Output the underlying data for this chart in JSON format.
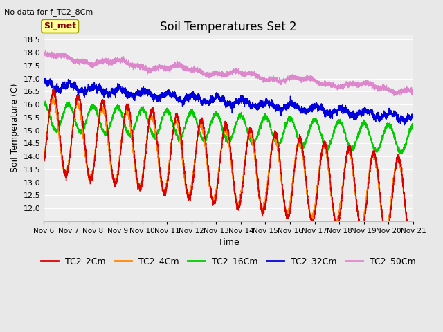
{
  "title": "Soil Temperatures Set 2",
  "subtitle": "No data for f_TC2_8Cm",
  "xlabel": "Time",
  "ylabel": "Soil Temperature (C)",
  "ylim": [
    11.5,
    18.7
  ],
  "xlim": [
    0,
    15
  ],
  "yticks": [
    12.0,
    12.5,
    13.0,
    13.5,
    14.0,
    14.5,
    15.0,
    15.5,
    16.0,
    16.5,
    17.0,
    17.5,
    18.0,
    18.5
  ],
  "xtick_labels": [
    "Nov 6",
    "Nov 7",
    "Nov 8",
    "Nov 9",
    "Nov 10",
    "Nov 11",
    "Nov 12",
    "Nov 13",
    "Nov 14",
    "Nov 15",
    "Nov 16",
    "Nov 17",
    "Nov 18",
    "Nov 19",
    "Nov 20",
    "Nov 21"
  ],
  "colors": {
    "TC2_2Cm": "#dd0000",
    "TC2_4Cm": "#ff8800",
    "TC2_16Cm": "#00cc00",
    "TC2_32Cm": "#0000dd",
    "TC2_50Cm": "#dd88cc"
  },
  "annotation_text": "SI_met",
  "annotation_box_facecolor": "#ffff99",
  "annotation_box_edgecolor": "#999900",
  "annotation_text_color": "#880000",
  "background_color": "#e8e8e8",
  "plot_bg_color": "#eeeeee",
  "grid_color": "#ffffff",
  "title_fontsize": 12,
  "subtitle_fontsize": 8,
  "label_fontsize": 9,
  "tick_fontsize": 8,
  "legend_fontsize": 9,
  "linewidth": 1.0
}
